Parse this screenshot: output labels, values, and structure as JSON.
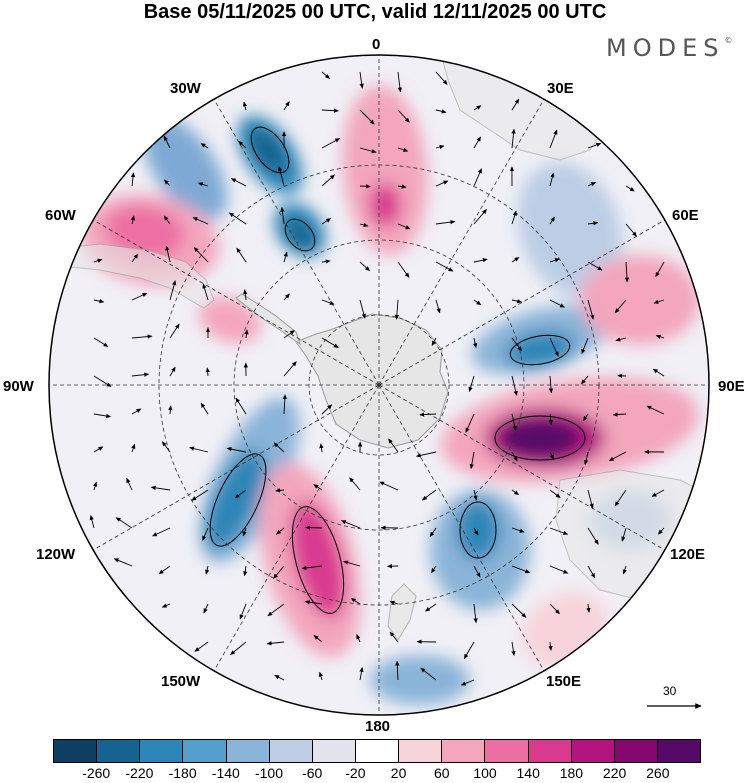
{
  "title": "Base 05/11/2025 00 UTC, valid 12/11/2025 00 UTC",
  "brand": {
    "name": "MODES",
    "mark": "©"
  },
  "longitude_labels": {
    "n": "0",
    "n30e": "30E",
    "n60e": "60E",
    "e": "90E",
    "s120e": "120E",
    "s150e": "150E",
    "s": "180",
    "s150w": "150W",
    "s120w": "120W",
    "w": "90W",
    "n60w": "60W",
    "n30w": "30W"
  },
  "reference_vector": {
    "value": "30"
  },
  "colors": {
    "land": "#e6e6e6",
    "coast": "#9a9a9a",
    "grid": "#333333"
  },
  "colorbar": {
    "colors": [
      "#0f3f63",
      "#15648f",
      "#2e86b8",
      "#549fcb",
      "#8ab4d8",
      "#bccde5",
      "#e4e4ef",
      "#ffffff",
      "#f7d3da",
      "#f3a6bd",
      "#ec6fa3",
      "#d93a90",
      "#b3157f",
      "#86086f",
      "#560a68"
    ],
    "labels": [
      "-260",
      "-220",
      "-180",
      "-140",
      "-100",
      "-60",
      "-20",
      "20",
      "60",
      "100",
      "140",
      "180",
      "220",
      "260"
    ]
  }
}
